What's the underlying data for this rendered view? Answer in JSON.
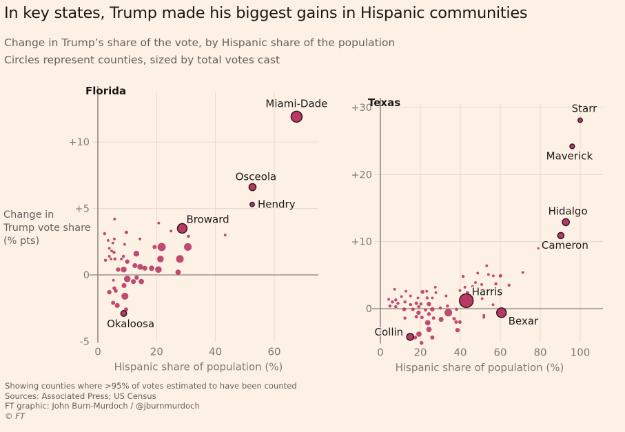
{
  "title": "In key states, Trump made his biggest gains in Hispanic communities",
  "subtitle_1": "Change in Trump’s share of the vote, by Hispanic share of the population",
  "subtitle_2": "Circles represent counties, sized by total votes cast",
  "footer": {
    "note": "Showing counties where >95% of votes estimated to have been counted",
    "sources": "Sources: Associated Press; US Census",
    "credit": "FT graphic: John Burn-Murdoch / @jburnmurdoch",
    "copyright": "© FT"
  },
  "colors": {
    "background": "#fdf1e6",
    "point": "#b83a62",
    "highlight_stroke": "#2e1a20",
    "grid": "#e6d9ce",
    "axis": "#8a817b"
  },
  "chart_data": [
    {
      "type": "scatter",
      "title": "Florida",
      "xlabel": "Hispanic share of population (%)",
      "ylabel": "Change in Trump vote share (% pts)",
      "xlim": [
        0,
        75
      ],
      "ylim": [
        -5,
        13
      ],
      "xticks": [
        0,
        20,
        40,
        60
      ],
      "xtick_labels": [
        "0",
        "20",
        "40",
        "60"
      ],
      "yticks": [
        -5,
        0,
        5,
        10
      ],
      "ytick_labels": [
        "-5",
        "0",
        "+5",
        "+10"
      ],
      "grid": true,
      "size_meaning": "total votes cast (relative)",
      "labeled_points": [
        {
          "name": "Miami-Dade",
          "x": 67.6,
          "y": 11.9,
          "size": 25
        },
        {
          "name": "Osceola",
          "x": 52.6,
          "y": 6.6,
          "size": 10
        },
        {
          "name": "Hendry",
          "x": 52.5,
          "y": 5.3,
          "size": 4
        },
        {
          "name": "Broward",
          "x": 28.7,
          "y": 3.5,
          "size": 19
        },
        {
          "name": "Okaloosa",
          "x": 8.8,
          "y": -2.9,
          "size": 7
        }
      ],
      "points": [
        [
          5.7,
          4.2,
          1.5
        ],
        [
          20.7,
          3.9,
          1.5
        ],
        [
          24.9,
          3.3,
          1.5
        ],
        [
          2.3,
          3.1,
          2
        ],
        [
          9.7,
          3.2,
          2.5
        ],
        [
          30.8,
          2.9,
          2
        ],
        [
          43.3,
          3.0,
          1.5
        ],
        [
          3.5,
          2.6,
          1.5
        ],
        [
          5.6,
          2.7,
          1.5
        ],
        [
          14.3,
          2.7,
          1.5
        ],
        [
          5.1,
          2.4,
          1.5
        ],
        [
          9.1,
          2.3,
          1.5
        ],
        [
          21.7,
          2.1,
          14
        ],
        [
          30.6,
          2.1,
          12
        ],
        [
          19.3,
          2.1,
          3.5
        ],
        [
          13.1,
          1.6,
          7
        ],
        [
          3.9,
          2.0,
          1.5
        ],
        [
          4.7,
          1.8,
          1.5
        ],
        [
          5.5,
          1.7,
          2
        ],
        [
          3.9,
          1.4,
          1.5
        ],
        [
          4.5,
          1.2,
          1.5
        ],
        [
          2.6,
          1.1,
          2
        ],
        [
          5.8,
          1.2,
          2
        ],
        [
          8.7,
          1.4,
          2
        ],
        [
          8.0,
          1.2,
          1.5
        ],
        [
          10.0,
          1.0,
          4
        ],
        [
          21.3,
          1.2,
          9
        ],
        [
          27.9,
          1.2,
          12
        ],
        [
          12.6,
          0.7,
          5
        ],
        [
          14.4,
          0.6,
          7
        ],
        [
          16.0,
          0.5,
          5
        ],
        [
          18.3,
          0.5,
          6
        ],
        [
          20.6,
          0.4,
          9
        ],
        [
          6.9,
          0.4,
          4
        ],
        [
          8.8,
          0.4,
          7
        ],
        [
          27.3,
          0.2,
          6
        ],
        [
          10.0,
          -0.3,
          9
        ],
        [
          13.2,
          -0.2,
          4
        ],
        [
          12.1,
          -0.5,
          5
        ],
        [
          14.8,
          -0.5,
          6
        ],
        [
          5.3,
          -0.4,
          1.5
        ],
        [
          8.9,
          -0.8,
          5
        ],
        [
          5.6,
          -1.0,
          3
        ],
        [
          6.1,
          -1.2,
          3
        ],
        [
          3.9,
          -1.3,
          4
        ],
        [
          9.2,
          -1.6,
          10
        ],
        [
          5.2,
          -2.1,
          3.5
        ],
        [
          6.6,
          -2.3,
          5
        ],
        [
          9.6,
          -2.6,
          3.5
        ]
      ]
    },
    {
      "type": "scatter",
      "title": "Texas",
      "xlabel": "Hispanic share of population (%)",
      "xlim": [
        0,
        110
      ],
      "ylim": [
        -5,
        32
      ],
      "xticks": [
        0,
        20,
        40,
        60,
        80,
        100
      ],
      "xtick_labels": [
        "0",
        "20",
        "40",
        "60",
        "80",
        "100"
      ],
      "yticks": [
        0,
        10,
        20,
        30
      ],
      "ytick_labels": [
        "0",
        "+10",
        "+20",
        "+30"
      ],
      "grid": true,
      "size_meaning": "total votes cast (relative)",
      "labeled_points": [
        {
          "name": "Starr",
          "x": 100,
          "y": 28.1,
          "size": 4
        },
        {
          "name": "Maverick",
          "x": 96,
          "y": 24.2,
          "size": 4.5
        },
        {
          "name": "Hidalgo",
          "x": 92.8,
          "y": 12.9,
          "size": 10
        },
        {
          "name": "Cameron",
          "x": 90.3,
          "y": 10.9,
          "size": 8
        },
        {
          "name": "Harris",
          "x": 43,
          "y": 1.2,
          "size": 39
        },
        {
          "name": "Bexar",
          "x": 60.6,
          "y": -0.6,
          "size": 19
        },
        {
          "name": "Collin",
          "x": 14.9,
          "y": -4.2,
          "size": 10
        }
      ],
      "points": [
        [
          79,
          9.0,
          1
        ],
        [
          71.3,
          5.4,
          1.5
        ],
        [
          53.2,
          6.4,
          1.5
        ],
        [
          48.7,
          5.3,
          1.5
        ],
        [
          54.1,
          5.1,
          1.5
        ],
        [
          56.5,
          4.9,
          1.5
        ],
        [
          60.1,
          4.9,
          2.5
        ],
        [
          41.4,
          4.8,
          2
        ],
        [
          47.6,
          3.9,
          1.5
        ],
        [
          50.7,
          3.6,
          1.5
        ],
        [
          57.8,
          3.7,
          2
        ],
        [
          64.4,
          3.5,
          2
        ],
        [
          42.3,
          3.2,
          1.5
        ],
        [
          46.1,
          3.3,
          1.5
        ],
        [
          7.1,
          2.9,
          1.5
        ],
        [
          27.5,
          3.2,
          1.5
        ],
        [
          39.8,
          2.7,
          1.5
        ],
        [
          43.6,
          2.4,
          2
        ],
        [
          12.8,
          2.6,
          1.5
        ],
        [
          21.1,
          2.5,
          3
        ],
        [
          23.2,
          2.6,
          1.5
        ],
        [
          27.8,
          2.4,
          1.5
        ],
        [
          10.6,
          1.8,
          1.5
        ],
        [
          15.1,
          1.9,
          1.5
        ],
        [
          18.8,
          1.6,
          1.5
        ],
        [
          32.9,
          1.9,
          1.5
        ],
        [
          50.9,
          1.5,
          1.5
        ],
        [
          4.2,
          1.4,
          1.5
        ],
        [
          7.7,
          1.3,
          2
        ],
        [
          23.4,
          1.6,
          2
        ],
        [
          26.0,
          1.6,
          1.5
        ],
        [
          6,
          1.0,
          2
        ],
        [
          8.8,
          0.8,
          2
        ],
        [
          12.3,
          1.0,
          2
        ],
        [
          15.1,
          0.6,
          2
        ],
        [
          18,
          0.8,
          2.5
        ],
        [
          20.3,
          0.7,
          2
        ],
        [
          24.3,
          0.7,
          4
        ],
        [
          4.8,
          0.4,
          2
        ],
        [
          7.7,
          0.3,
          2
        ],
        [
          11.9,
          -0.1,
          3
        ],
        [
          16.3,
          -0.1,
          2.5
        ],
        [
          19.2,
          0.3,
          2
        ],
        [
          22.6,
          -0.2,
          2
        ],
        [
          26,
          -0.1,
          4
        ],
        [
          30,
          0.1,
          2
        ],
        [
          33.6,
          0.4,
          2
        ],
        [
          38.1,
          -0.1,
          2
        ],
        [
          56.4,
          0.6,
          1.5
        ],
        [
          34,
          -0.6,
          12
        ],
        [
          19.1,
          -0.6,
          4
        ],
        [
          24.3,
          -0.8,
          3
        ],
        [
          18,
          -1.2,
          2.5
        ],
        [
          20.8,
          -1.3,
          2.5
        ],
        [
          12.3,
          -1.4,
          2
        ],
        [
          26.6,
          -1.4,
          2.5
        ],
        [
          30.4,
          -1.6,
          5
        ],
        [
          36.9,
          -1.5,
          2.5
        ],
        [
          39.8,
          -2.0,
          2.5
        ],
        [
          37.9,
          -2.0,
          2.5
        ],
        [
          51.8,
          -1.0,
          1.5
        ],
        [
          51.8,
          -1.3,
          1.5
        ],
        [
          23.7,
          -2.1,
          6
        ],
        [
          24.3,
          -3.1,
          6
        ],
        [
          38.6,
          -3.2,
          4
        ],
        [
          19.3,
          -3.8,
          6
        ],
        [
          26.0,
          -4.3,
          3.5
        ],
        [
          20.6,
          -5.1,
          3
        ],
        [
          17.4,
          -4.3,
          3
        ]
      ]
    }
  ]
}
